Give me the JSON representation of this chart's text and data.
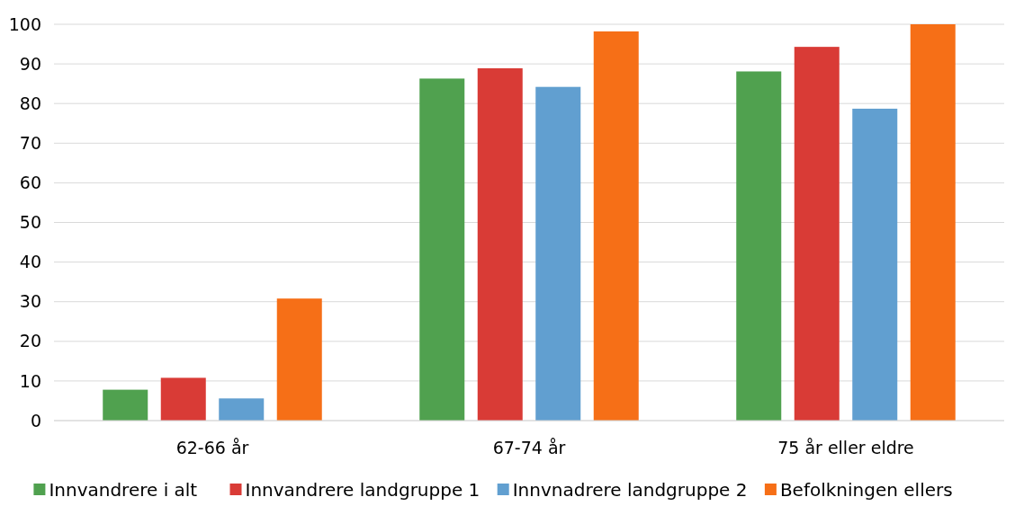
{
  "chart_data": {
    "type": "bar",
    "categories": [
      "62-66 år",
      "67-74 år",
      "75 år eller eldre"
    ],
    "series": [
      {
        "name": "Innvandrere i alt",
        "color": "#50a14f",
        "values": [
          7.8,
          86.3,
          88.1
        ]
      },
      {
        "name": "Innvandrere landgruppe 1",
        "color": "#d93b36",
        "values": [
          10.8,
          88.9,
          94.3
        ]
      },
      {
        "name": "Innvnadrere landgruppe 2",
        "color": "#619fd0",
        "values": [
          5.6,
          84.2,
          78.7
        ]
      },
      {
        "name": "Befolkningen ellers",
        "color": "#f66f17",
        "values": [
          30.8,
          98.2,
          100
        ]
      }
    ],
    "ylim": [
      0,
      100
    ],
    "yticks": [
      0,
      10,
      20,
      30,
      40,
      50,
      60,
      70,
      80,
      90,
      100
    ],
    "grid": "y",
    "legend": "bottom"
  }
}
